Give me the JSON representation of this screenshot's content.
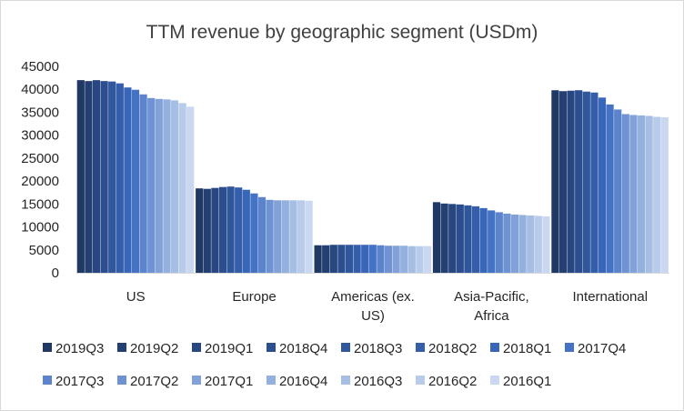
{
  "chart_data": {
    "type": "bar",
    "title": "TTM revenue by geographic segment (USDm)",
    "xlabel": "",
    "ylabel": "",
    "ylim": [
      0,
      45000
    ],
    "yticks": [
      0,
      5000,
      10000,
      15000,
      20000,
      25000,
      30000,
      35000,
      40000,
      45000
    ],
    "grid": false,
    "legend_position": "bottom",
    "categories": [
      [
        "US"
      ],
      [
        "Europe"
      ],
      [
        "Americas (ex.",
        "US)"
      ],
      [
        "Asia-Pacific,",
        "Africa"
      ],
      [
        "International"
      ]
    ],
    "series": [
      {
        "name": "2019Q3",
        "color": "#203864",
        "values": [
          42000,
          18400,
          6000,
          15400,
          39800
        ]
      },
      {
        "name": "2019Q2",
        "color": "#243f72",
        "values": [
          41800,
          18300,
          6000,
          15100,
          39600
        ]
      },
      {
        "name": "2019Q1",
        "color": "#284780",
        "values": [
          42000,
          18500,
          6100,
          15000,
          39700
        ]
      },
      {
        "name": "2018Q4",
        "color": "#2c4e8e",
        "values": [
          41800,
          18700,
          6100,
          14900,
          39800
        ]
      },
      {
        "name": "2018Q3",
        "color": "#30569c",
        "values": [
          41700,
          18800,
          6100,
          14700,
          39500
        ]
      },
      {
        "name": "2018Q2",
        "color": "#345eaa",
        "values": [
          41300,
          18600,
          6100,
          14500,
          39300
        ]
      },
      {
        "name": "2018Q1",
        "color": "#3866b8",
        "values": [
          40400,
          18100,
          6100,
          14100,
          38200
        ]
      },
      {
        "name": "2017Q4",
        "color": "#4472c4",
        "values": [
          39900,
          17300,
          6100,
          13600,
          36700
        ]
      },
      {
        "name": "2017Q3",
        "color": "#5b84cc",
        "values": [
          38900,
          16500,
          6000,
          13200,
          35600
        ]
      },
      {
        "name": "2017Q2",
        "color": "#6f93d2",
        "values": [
          38100,
          15900,
          5900,
          12900,
          34600
        ]
      },
      {
        "name": "2017Q1",
        "color": "#82a1d8",
        "values": [
          37900,
          15800,
          5900,
          12700,
          34400
        ]
      },
      {
        "name": "2016Q4",
        "color": "#94b0de",
        "values": [
          37800,
          15800,
          5900,
          12600,
          34300
        ]
      },
      {
        "name": "2016Q3",
        "color": "#a6bee4",
        "values": [
          37600,
          15800,
          5800,
          12500,
          34200
        ]
      },
      {
        "name": "2016Q2",
        "color": "#b8cbea",
        "values": [
          37000,
          15800,
          5800,
          12400,
          34000
        ]
      },
      {
        "name": "2016Q1",
        "color": "#c9d8f0",
        "values": [
          36200,
          15700,
          5800,
          12300,
          33900
        ]
      }
    ]
  }
}
